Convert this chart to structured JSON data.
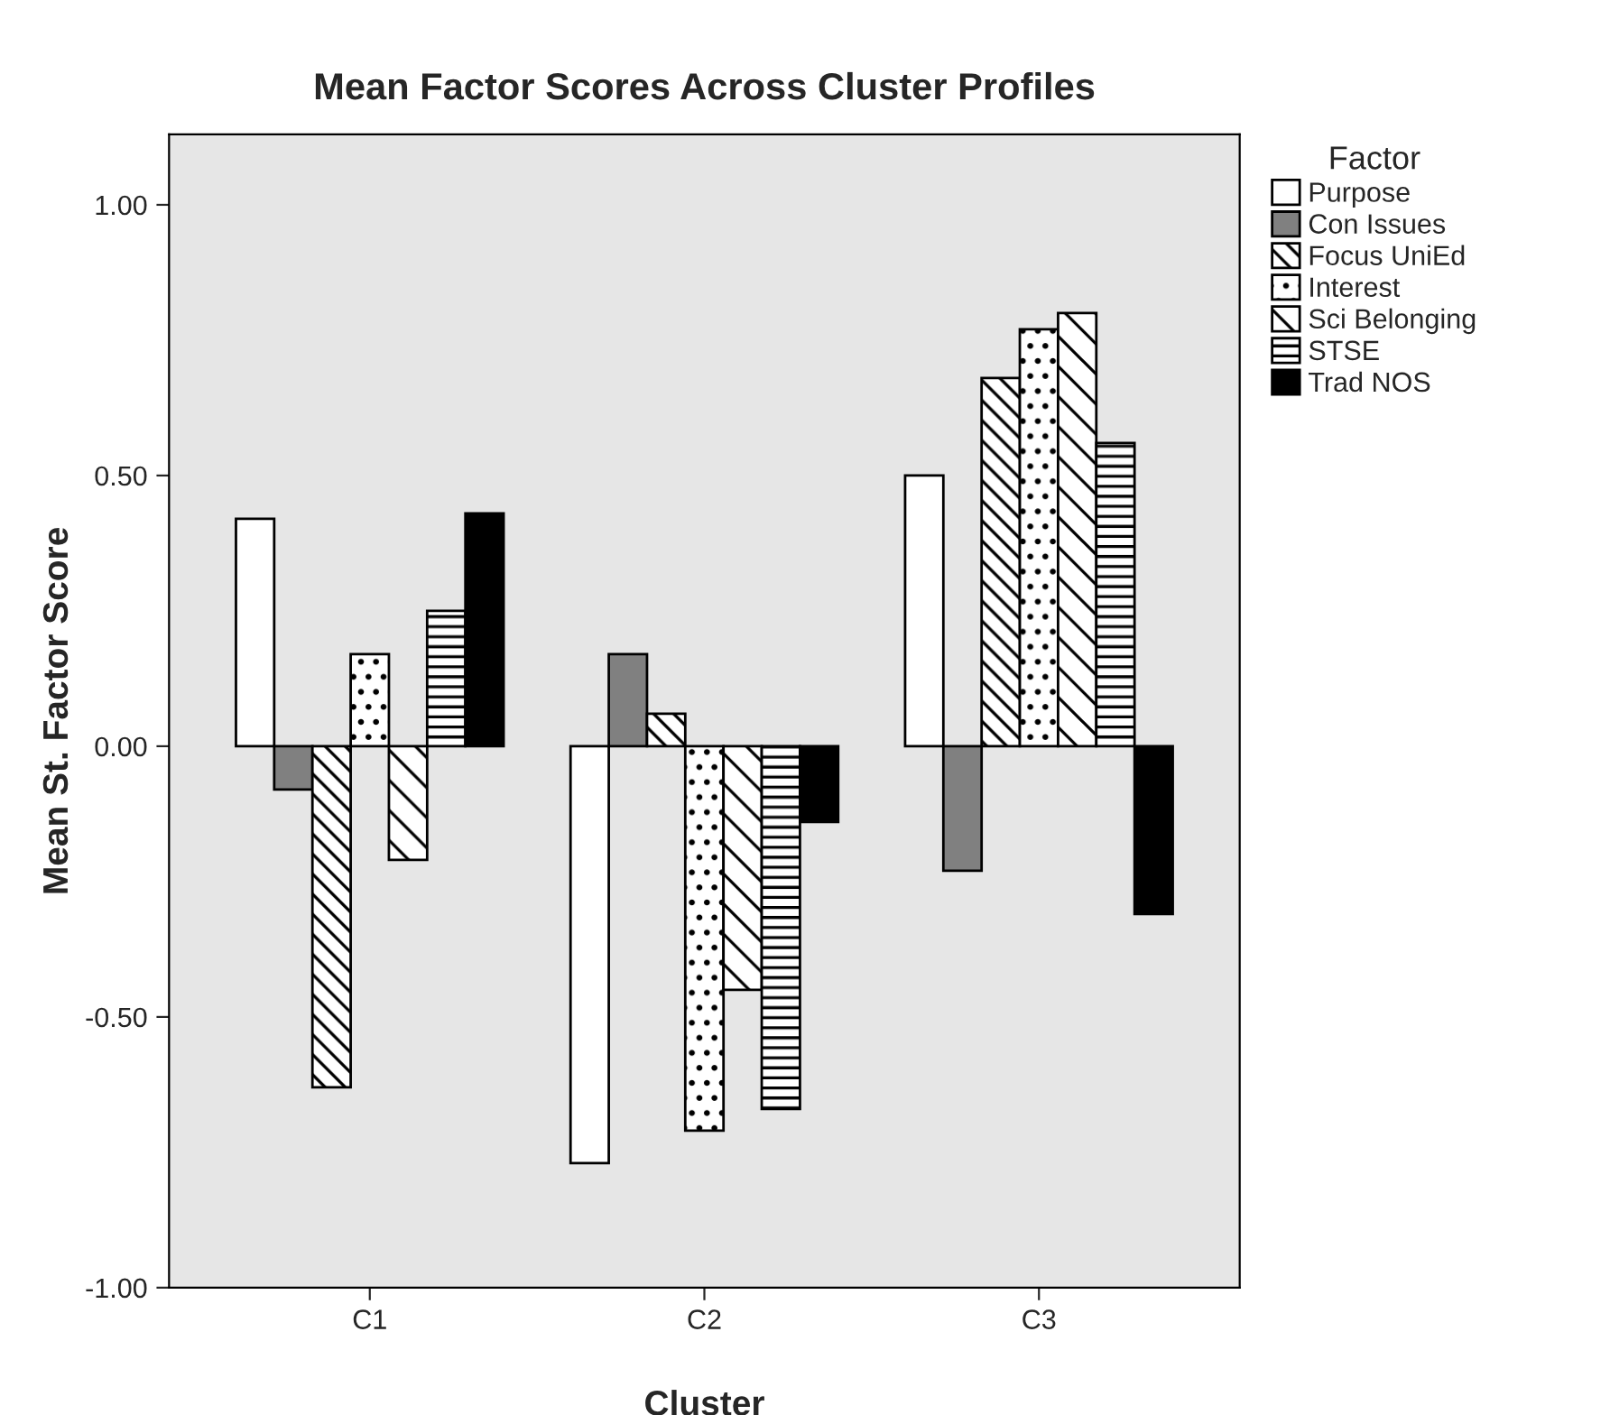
{
  "chart_data": {
    "type": "bar",
    "title": "Mean Factor Scores Across Cluster Profiles",
    "xlabel": "Cluster",
    "ylabel": "Mean St. Factor Score",
    "legend_title": "Factor",
    "legend": "right",
    "grid": false,
    "categories": [
      "C1",
      "C2",
      "C3"
    ],
    "ylim": [
      -1.0,
      1.13
    ],
    "yticks": [
      {
        "value": -1.0,
        "label": "-1.00"
      },
      {
        "value": -0.5,
        "label": "-0.50"
      },
      {
        "value": 0.0,
        "label": "0.00"
      },
      {
        "value": 0.5,
        "label": "0.50"
      },
      {
        "value": 1.0,
        "label": "1.00"
      }
    ],
    "series": [
      {
        "name": "Purpose",
        "color": "#ffffff",
        "values": [
          0.42,
          -0.77,
          0.5
        ]
      },
      {
        "name": "Con Issues",
        "color": "#808080",
        "values": [
          -0.08,
          0.17,
          -0.23
        ]
      },
      {
        "name": "Focus UniEd",
        "color": "#000000",
        "values": [
          -0.63,
          0.06,
          0.68
        ]
      },
      {
        "name": "Interest",
        "color": "#000000",
        "values": [
          0.17,
          -0.71,
          0.77
        ]
      },
      {
        "name": "Sci Belonging",
        "color": "#000000",
        "values": [
          -0.21,
          -0.45,
          0.8
        ]
      },
      {
        "name": "STSE",
        "color": "#000000",
        "values": [
          0.25,
          -0.67,
          0.56
        ]
      },
      {
        "name": "Trad NOS",
        "color": "#000000",
        "values": [
          0.43,
          -0.14,
          -0.31
        ]
      }
    ]
  }
}
